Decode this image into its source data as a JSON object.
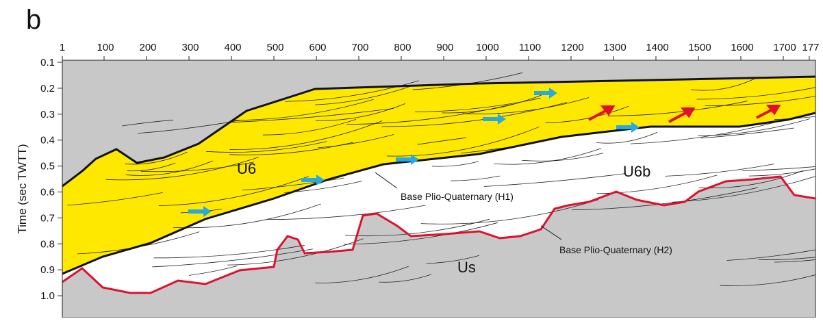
{
  "panel_label": "b",
  "top_axis": {
    "ticks": [
      "1",
      "100",
      "200",
      "300",
      "400",
      "500",
      "600",
      "700",
      "800",
      "900",
      "1000",
      "1100",
      "1200",
      "1300",
      "1400",
      "1500",
      "1600",
      "1700",
      "177"
    ]
  },
  "left_axis": {
    "title": "Time (sec TWTT)",
    "ticks": [
      "0.1",
      "0.2",
      "0.3",
      "0.4",
      "0.5",
      "0.6",
      "0.7",
      "0.8",
      "0.9",
      "1.0"
    ]
  },
  "units": {
    "upper": "U6",
    "middle": "U6b",
    "lower": "Us"
  },
  "annotations": {
    "h1": "Base Plio-Quaternary (H1)",
    "h2": "Base Plio-Quaternary (H2)"
  }
}
